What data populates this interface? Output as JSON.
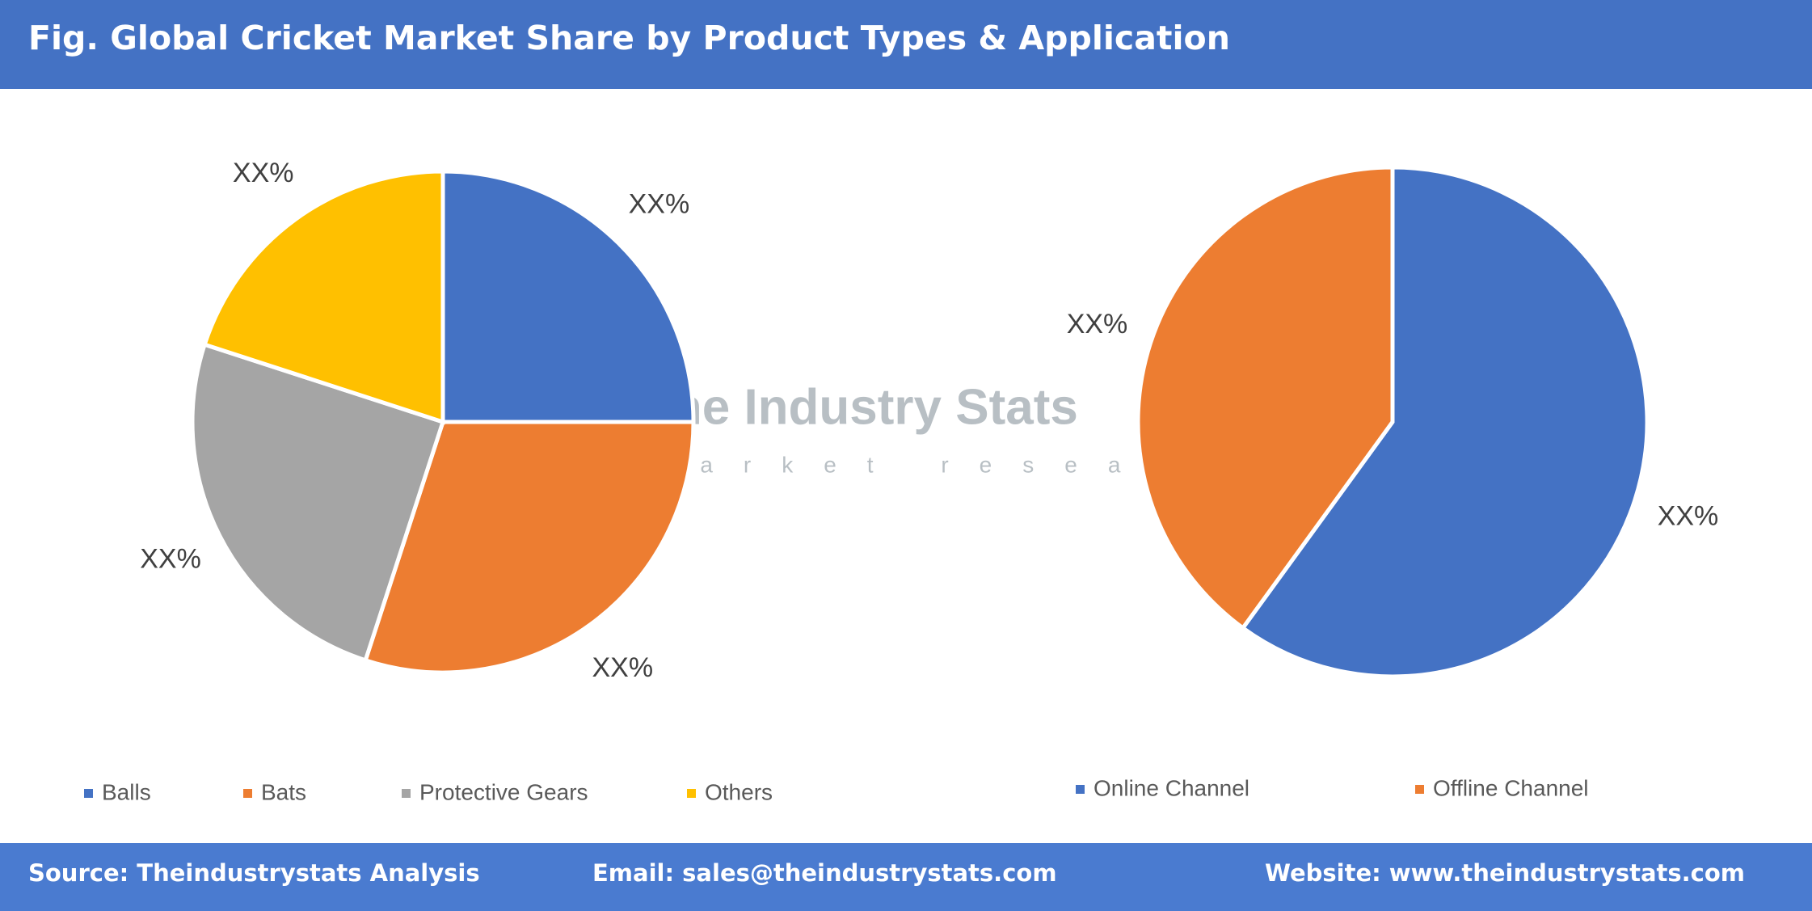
{
  "header": {
    "title": "Fig. Global Cricket Market Share by Product Types & Application"
  },
  "watermark": {
    "name": "The Industry Stats",
    "tagline": "market research"
  },
  "chart_data": [
    {
      "type": "pie",
      "categories": [
        "Balls",
        "Bats",
        "Protective Gears",
        "Others"
      ],
      "values": [
        25,
        30,
        25,
        20
      ],
      "value_labels": [
        "XX%",
        "XX%",
        "XX%",
        "XX%"
      ],
      "colors": [
        "#4472c4",
        "#ed7d31",
        "#a5a5a5",
        "#ffc000"
      ]
    },
    {
      "type": "pie",
      "categories": [
        "Online Channel",
        "Offline Channel"
      ],
      "values": [
        60,
        40
      ],
      "value_labels": [
        "XX%",
        "XX%"
      ],
      "colors": [
        "#4472c4",
        "#ed7d31"
      ]
    }
  ],
  "footer": {
    "source": "Source: Theindustrystats Analysis",
    "email": "Email: sales@theindustrystats.com",
    "website": "Website: www.theindustrystats.com"
  }
}
